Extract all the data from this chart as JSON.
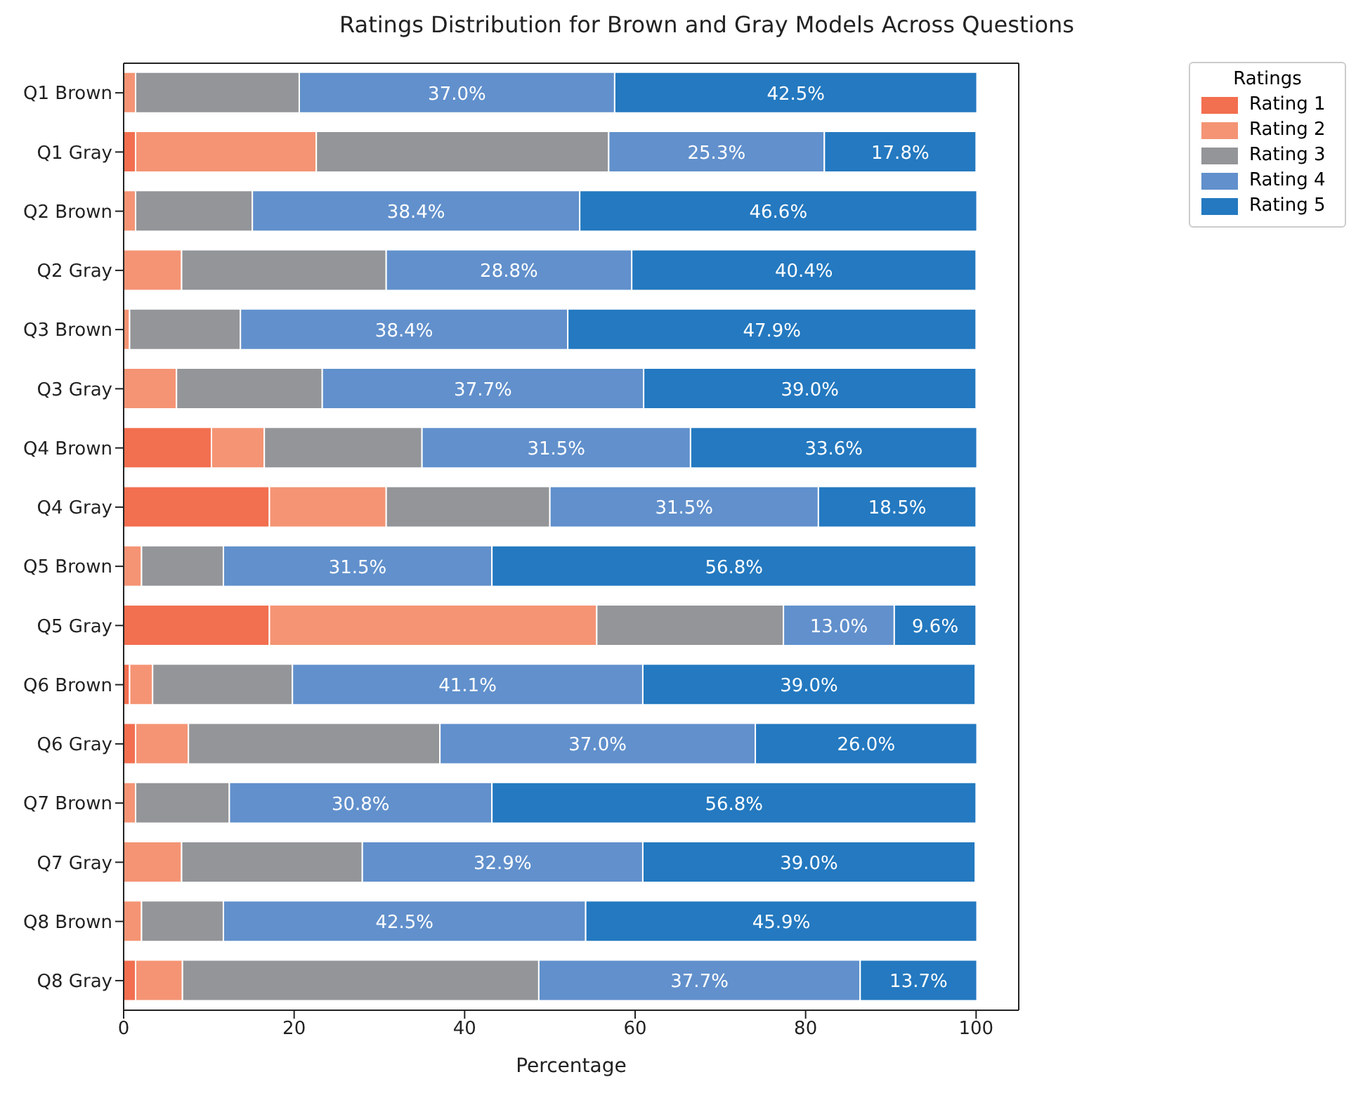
{
  "chart_data": {
    "type": "bar",
    "orientation": "horizontal",
    "stacked": true,
    "title": "Ratings Distribution for Brown and Gray Models Across Questions",
    "xlabel": "Percentage",
    "legend_title": "Ratings",
    "legend": "top right",
    "grid": false,
    "categories": [
      "Q1 Brown",
      "Q1 Gray",
      "Q2 Brown",
      "Q2 Gray",
      "Q3 Brown",
      "Q3 Gray",
      "Q4 Brown",
      "Q4 Gray",
      "Q5 Brown",
      "Q5 Gray",
      "Q6 Brown",
      "Q6 Gray",
      "Q7 Brown",
      "Q7 Gray",
      "Q8 Brown",
      "Q8 Gray"
    ],
    "xlim": [
      0,
      105
    ],
    "xticks": [
      0,
      20,
      40,
      60,
      80,
      100
    ],
    "series": [
      {
        "name": "Rating 1",
        "color": "#f26f50",
        "values": [
          0,
          1.4,
          0,
          0,
          0,
          0,
          10.3,
          17.1,
          0,
          17.1,
          0.7,
          1.4,
          0,
          0,
          0,
          1.4
        ]
      },
      {
        "name": "Rating 2",
        "color": "#f49474",
        "values": [
          1.4,
          21.2,
          1.4,
          6.8,
          0.7,
          6.2,
          6.2,
          13.7,
          2.1,
          38.4,
          2.7,
          6.2,
          1.4,
          6.8,
          2.1,
          5.5
        ]
      },
      {
        "name": "Rating 3",
        "color": "#939598",
        "values": [
          19.2,
          34.3,
          13.7,
          24.0,
          13.0,
          17.1,
          18.5,
          19.2,
          9.6,
          21.9,
          16.4,
          29.5,
          11.0,
          21.2,
          9.6,
          41.8
        ]
      },
      {
        "name": "Rating 4",
        "color": "#6190cc",
        "values": [
          37.0,
          25.3,
          38.4,
          28.8,
          38.4,
          37.7,
          31.5,
          31.5,
          31.5,
          13.0,
          41.1,
          37.0,
          30.8,
          32.9,
          42.5,
          37.7
        ],
        "value_labels": [
          "37.0%",
          "25.3%",
          "38.4%",
          "28.8%",
          "38.4%",
          "37.7%",
          "31.5%",
          "31.5%",
          "31.5%",
          "13.0%",
          "41.1%",
          "37.0%",
          "30.8%",
          "32.9%",
          "42.5%",
          "37.7%"
        ]
      },
      {
        "name": "Rating 5",
        "color": "#2479c0",
        "values": [
          42.5,
          17.8,
          46.6,
          40.4,
          47.9,
          39.0,
          33.6,
          18.5,
          56.8,
          9.6,
          39.0,
          26.0,
          56.8,
          39.0,
          45.9,
          13.7
        ],
        "value_labels": [
          "42.5%",
          "17.8%",
          "46.6%",
          "40.4%",
          "47.9%",
          "39.0%",
          "33.6%",
          "18.5%",
          "56.8%",
          "9.6%",
          "39.0%",
          "26.0%",
          "56.8%",
          "39.0%",
          "45.9%",
          "13.7%"
        ]
      }
    ]
  }
}
